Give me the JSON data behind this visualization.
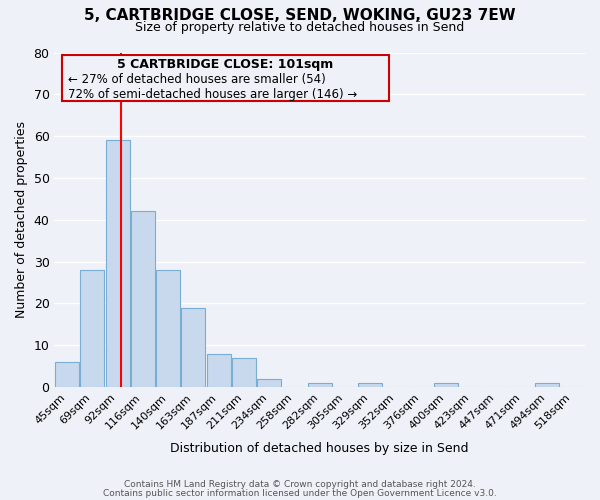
{
  "title": "5, CARTBRIDGE CLOSE, SEND, WOKING, GU23 7EW",
  "subtitle": "Size of property relative to detached houses in Send",
  "xlabel": "Distribution of detached houses by size in Send",
  "ylabel": "Number of detached properties",
  "bar_color": "#c8d9ee",
  "bar_edge_color": "#7aadd4",
  "background_color": "#eef1f7",
  "grid_color": "#ffffff",
  "bin_labels": [
    "45sqm",
    "69sqm",
    "92sqm",
    "116sqm",
    "140sqm",
    "163sqm",
    "187sqm",
    "211sqm",
    "234sqm",
    "258sqm",
    "282sqm",
    "305sqm",
    "329sqm",
    "352sqm",
    "376sqm",
    "400sqm",
    "423sqm",
    "447sqm",
    "471sqm",
    "494sqm",
    "518sqm"
  ],
  "bar_heights": [
    6,
    28,
    59,
    42,
    28,
    19,
    8,
    7,
    2,
    0,
    1,
    0,
    1,
    0,
    0,
    1,
    0,
    0,
    0,
    1,
    0
  ],
  "ylim": [
    0,
    80
  ],
  "yticks": [
    0,
    10,
    20,
    30,
    40,
    50,
    60,
    70,
    80
  ],
  "red_line_x": 2.15,
  "annotation_title": "5 CARTBRIDGE CLOSE: 101sqm",
  "annotation_line1": "← 27% of detached houses are smaller (54)",
  "annotation_line2": "72% of semi-detached houses are larger (146) →",
  "footer_line1": "Contains HM Land Registry data © Crown copyright and database right 2024.",
  "footer_line2": "Contains public sector information licensed under the Open Government Licence v3.0."
}
